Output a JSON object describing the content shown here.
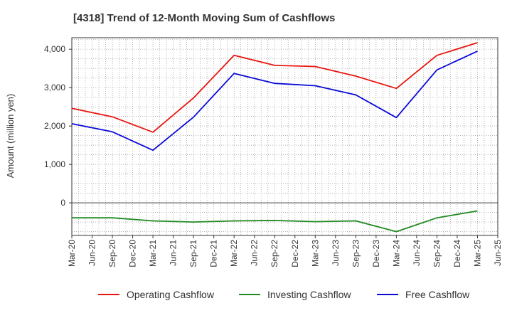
{
  "chart_data": {
    "type": "line",
    "title": "[4318]  Trend of 12-Month Moving Sum of Cashflows",
    "ylabel": "Amount (million yen)",
    "xlabel": "",
    "x_ticks": [
      "Mar-20",
      "Jun-20",
      "Sep-20",
      "Dec-20",
      "Mar-21",
      "Jun-21",
      "Sep-21",
      "Dec-21",
      "Mar-22",
      "Jun-22",
      "Sep-22",
      "Dec-22",
      "Mar-23",
      "Jun-23",
      "Sep-23",
      "Dec-23",
      "Mar-24",
      "Jun-24",
      "Sep-24",
      "Dec-24",
      "Mar-25",
      "Jun-25"
    ],
    "y_ticks": [
      "4,000",
      "3,000",
      "2,000",
      "1,000",
      "0"
    ],
    "ylim": [
      -850,
      4300
    ],
    "grid": true,
    "legend_position": "bottom",
    "series": [
      {
        "name": "Operating Cashflow",
        "color": "#e8150f",
        "x": [
          "Mar-20",
          "Sep-20",
          "Mar-21",
          "Sep-21",
          "Mar-22",
          "Sep-22",
          "Mar-23",
          "Sep-23",
          "Mar-24",
          "Sep-24",
          "Mar-25"
        ],
        "values": [
          2460,
          2240,
          1840,
          2730,
          3840,
          3580,
          3550,
          3300,
          2980,
          3840,
          4170
        ]
      },
      {
        "name": "Investing Cashflow",
        "color": "#228b22",
        "x": [
          "Mar-20",
          "Sep-20",
          "Mar-21",
          "Sep-21",
          "Mar-22",
          "Sep-22",
          "Mar-23",
          "Sep-23",
          "Mar-24",
          "Sep-24",
          "Mar-25"
        ],
        "values": [
          -390,
          -390,
          -470,
          -500,
          -470,
          -460,
          -490,
          -470,
          -750,
          -390,
          -210
        ]
      },
      {
        "name": "Free Cashflow",
        "color": "#0a0ad8",
        "x": [
          "Mar-20",
          "Sep-20",
          "Mar-21",
          "Sep-21",
          "Mar-22",
          "Sep-22",
          "Mar-23",
          "Sep-23",
          "Mar-24",
          "Sep-24",
          "Mar-25"
        ],
        "values": [
          2060,
          1850,
          1370,
          2230,
          3370,
          3110,
          3050,
          2810,
          2220,
          3460,
          3950
        ]
      }
    ]
  }
}
